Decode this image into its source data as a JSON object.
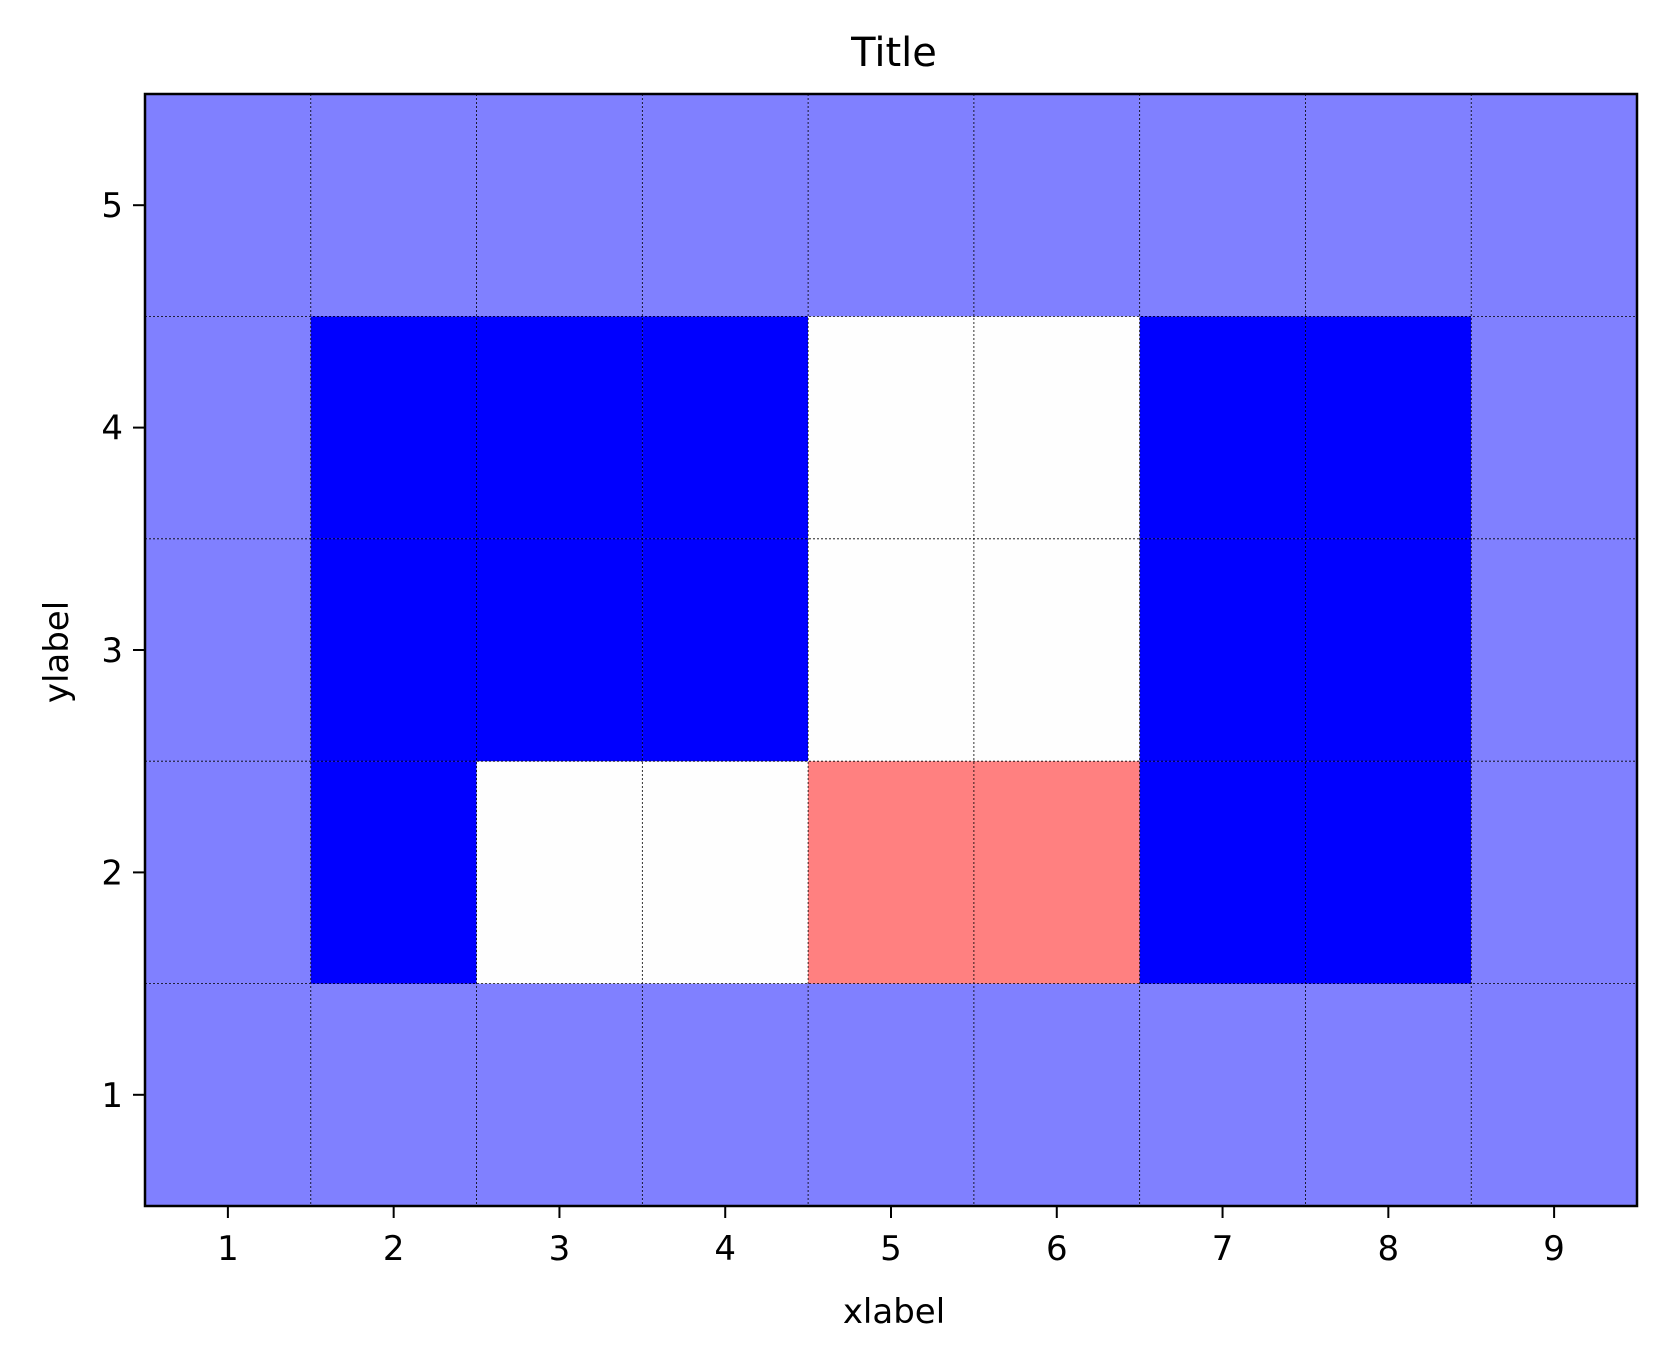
{
  "chart_data": {
    "type": "heatmap",
    "title": "Title",
    "xlabel": "xlabel",
    "ylabel": "ylabel",
    "x_ticks": [
      "1",
      "2",
      "3",
      "4",
      "5",
      "6",
      "7",
      "8",
      "9"
    ],
    "y_ticks": [
      "1",
      "2",
      "3",
      "4",
      "5"
    ],
    "xlim": [
      0.5,
      9.5
    ],
    "ylim": [
      0.5,
      5.5
    ],
    "grid": "on",
    "colorscale": {
      "-1": "#0000ff",
      "-0.5": "#8080ff",
      "0": "#fefefe",
      "0.5": "#ff8080"
    },
    "values": [
      [
        -0.5,
        -0.5,
        -0.5,
        -0.5,
        -0.5,
        -0.5,
        -0.5,
        -0.5,
        -0.5
      ],
      [
        -0.5,
        -1,
        0,
        0,
        0.5,
        0.5,
        -1,
        -1,
        -0.5
      ],
      [
        -0.5,
        -1,
        -1,
        -1,
        0,
        0,
        -1,
        -1,
        -0.5
      ],
      [
        -0.5,
        -1,
        -1,
        -1,
        0,
        0,
        -1,
        -1,
        -0.5
      ],
      [
        -0.5,
        -0.5,
        -0.5,
        -0.5,
        -0.5,
        -0.5,
        -0.5,
        -0.5,
        -0.5
      ]
    ]
  }
}
